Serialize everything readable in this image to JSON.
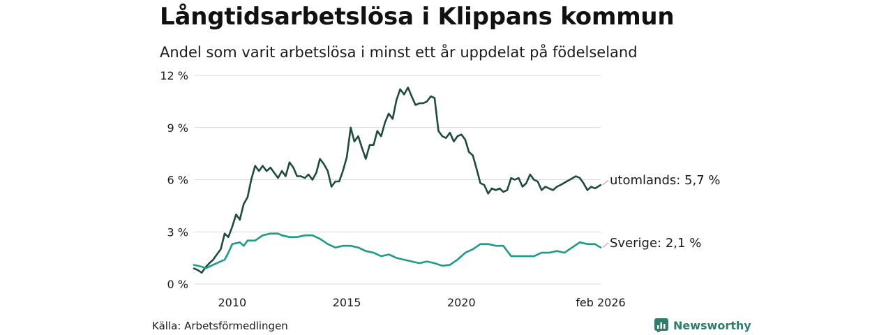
{
  "header": {
    "title": "Långtidsarbetslösa i Klippans kommun",
    "subtitle": "Andel som varit arbetslösa i minst ett år uppdelat på födelseland"
  },
  "footer": {
    "source": "Källa: Arbetsförmedlingen",
    "brand": "Newsworthy"
  },
  "colors": {
    "utomlands": "#1f4a40",
    "sverige": "#1e9a88",
    "grid": "#d9d9d9",
    "brand": "#2f7d6d"
  },
  "chart_data": {
    "type": "line",
    "title": "Långtidsarbetslösa i Klippans kommun",
    "subtitle": "Andel som varit arbetslösa i minst ett år uppdelat på födelseland",
    "xlabel": "",
    "ylabel": "",
    "xlim": [
      2008.33,
      2026.08
    ],
    "ylim": [
      0,
      12
    ],
    "y_ticks": [
      0,
      3,
      6,
      9,
      12
    ],
    "y_tick_labels": [
      "0 %",
      "3 %",
      "6 %",
      "9 %",
      "12 %"
    ],
    "x_ticks": [
      2010,
      2015,
      2020,
      2026.08
    ],
    "x_tick_labels": [
      "2010",
      "2015",
      "2020",
      "feb 2026"
    ],
    "grid": "horizontal",
    "series": [
      {
        "name": "utomlands",
        "end_label": "utomlands: 5,7 %",
        "points": [
          [
            2008.33,
            0.9
          ],
          [
            2008.5,
            0.8
          ],
          [
            2008.67,
            0.65
          ],
          [
            2008.83,
            0.95
          ],
          [
            2009.0,
            1.2
          ],
          [
            2009.17,
            1.4
          ],
          [
            2009.33,
            1.7
          ],
          [
            2009.5,
            2.0
          ],
          [
            2009.67,
            2.9
          ],
          [
            2009.83,
            2.7
          ],
          [
            2010.0,
            3.3
          ],
          [
            2010.17,
            4.0
          ],
          [
            2010.33,
            3.7
          ],
          [
            2010.5,
            4.6
          ],
          [
            2010.67,
            5.0
          ],
          [
            2010.83,
            6.0
          ],
          [
            2011.0,
            6.8
          ],
          [
            2011.17,
            6.5
          ],
          [
            2011.33,
            6.8
          ],
          [
            2011.5,
            6.5
          ],
          [
            2011.67,
            6.7
          ],
          [
            2011.83,
            6.4
          ],
          [
            2012.0,
            6.1
          ],
          [
            2012.17,
            6.5
          ],
          [
            2012.33,
            6.2
          ],
          [
            2012.5,
            7.0
          ],
          [
            2012.67,
            6.7
          ],
          [
            2012.83,
            6.2
          ],
          [
            2013.0,
            6.2
          ],
          [
            2013.17,
            6.1
          ],
          [
            2013.33,
            6.3
          ],
          [
            2013.5,
            6.0
          ],
          [
            2013.67,
            6.4
          ],
          [
            2013.83,
            7.2
          ],
          [
            2014.0,
            6.9
          ],
          [
            2014.17,
            6.5
          ],
          [
            2014.33,
            5.6
          ],
          [
            2014.5,
            5.9
          ],
          [
            2014.67,
            5.9
          ],
          [
            2014.83,
            6.5
          ],
          [
            2015.0,
            7.3
          ],
          [
            2015.17,
            9.0
          ],
          [
            2015.33,
            8.2
          ],
          [
            2015.5,
            8.5
          ],
          [
            2015.67,
            7.8
          ],
          [
            2015.83,
            7.2
          ],
          [
            2016.0,
            8.0
          ],
          [
            2016.17,
            8.0
          ],
          [
            2016.33,
            8.8
          ],
          [
            2016.5,
            8.5
          ],
          [
            2016.67,
            9.3
          ],
          [
            2016.83,
            9.8
          ],
          [
            2017.0,
            9.5
          ],
          [
            2017.17,
            10.6
          ],
          [
            2017.33,
            11.2
          ],
          [
            2017.5,
            10.9
          ],
          [
            2017.67,
            11.3
          ],
          [
            2017.83,
            10.8
          ],
          [
            2018.0,
            10.3
          ],
          [
            2018.17,
            10.4
          ],
          [
            2018.33,
            10.4
          ],
          [
            2018.5,
            10.5
          ],
          [
            2018.67,
            10.8
          ],
          [
            2018.83,
            10.7
          ],
          [
            2019.0,
            8.8
          ],
          [
            2019.17,
            8.5
          ],
          [
            2019.33,
            8.4
          ],
          [
            2019.5,
            8.7
          ],
          [
            2019.67,
            8.2
          ],
          [
            2019.83,
            8.5
          ],
          [
            2020.0,
            8.6
          ],
          [
            2020.17,
            8.3
          ],
          [
            2020.33,
            7.6
          ],
          [
            2020.5,
            7.4
          ],
          [
            2020.67,
            6.6
          ],
          [
            2020.83,
            5.8
          ],
          [
            2021.0,
            5.7
          ],
          [
            2021.17,
            5.2
          ],
          [
            2021.33,
            5.5
          ],
          [
            2021.5,
            5.4
          ],
          [
            2021.67,
            5.5
          ],
          [
            2021.83,
            5.3
          ],
          [
            2022.0,
            5.4
          ],
          [
            2022.17,
            6.1
          ],
          [
            2022.33,
            6.0
          ],
          [
            2022.5,
            6.1
          ],
          [
            2022.67,
            5.6
          ],
          [
            2022.83,
            5.8
          ],
          [
            2023.0,
            6.3
          ],
          [
            2023.17,
            6.0
          ],
          [
            2023.33,
            5.9
          ],
          [
            2023.5,
            5.4
          ],
          [
            2023.67,
            5.6
          ],
          [
            2023.83,
            5.5
          ],
          [
            2024.0,
            5.4
          ],
          [
            2024.17,
            5.6
          ],
          [
            2024.33,
            5.7
          ],
          [
            2025.0,
            6.2
          ],
          [
            2025.17,
            6.1
          ],
          [
            2025.33,
            5.8
          ],
          [
            2025.5,
            5.4
          ],
          [
            2025.67,
            5.6
          ],
          [
            2025.83,
            5.5
          ],
          [
            2026.08,
            5.7
          ]
        ]
      },
      {
        "name": "Sverige",
        "end_label": "Sverige: 2,1 %",
        "points": [
          [
            2008.33,
            1.1
          ],
          [
            2008.67,
            1.0
          ],
          [
            2008.83,
            0.9
          ],
          [
            2009.0,
            1.0
          ],
          [
            2009.33,
            1.2
          ],
          [
            2009.67,
            1.4
          ],
          [
            2009.83,
            1.8
          ],
          [
            2010.0,
            2.3
          ],
          [
            2010.33,
            2.4
          ],
          [
            2010.5,
            2.2
          ],
          [
            2010.67,
            2.5
          ],
          [
            2011.0,
            2.5
          ],
          [
            2011.33,
            2.8
          ],
          [
            2011.67,
            2.9
          ],
          [
            2012.0,
            2.9
          ],
          [
            2012.17,
            2.8
          ],
          [
            2012.5,
            2.7
          ],
          [
            2012.83,
            2.7
          ],
          [
            2013.17,
            2.8
          ],
          [
            2013.5,
            2.8
          ],
          [
            2013.83,
            2.6
          ],
          [
            2014.17,
            2.3
          ],
          [
            2014.5,
            2.1
          ],
          [
            2014.83,
            2.2
          ],
          [
            2015.17,
            2.2
          ],
          [
            2015.5,
            2.1
          ],
          [
            2015.83,
            1.9
          ],
          [
            2016.17,
            1.8
          ],
          [
            2016.5,
            1.6
          ],
          [
            2016.83,
            1.7
          ],
          [
            2017.17,
            1.5
          ],
          [
            2017.5,
            1.4
          ],
          [
            2017.83,
            1.3
          ],
          [
            2018.17,
            1.2
          ],
          [
            2018.5,
            1.3
          ],
          [
            2018.83,
            1.2
          ],
          [
            2019.17,
            1.05
          ],
          [
            2019.5,
            1.1
          ],
          [
            2019.83,
            1.4
          ],
          [
            2020.17,
            1.8
          ],
          [
            2020.5,
            2.0
          ],
          [
            2020.83,
            2.3
          ],
          [
            2021.17,
            2.3
          ],
          [
            2021.5,
            2.2
          ],
          [
            2021.83,
            2.2
          ],
          [
            2022.17,
            1.6
          ],
          [
            2022.5,
            1.6
          ],
          [
            2022.83,
            1.6
          ],
          [
            2023.17,
            1.6
          ],
          [
            2023.5,
            1.8
          ],
          [
            2023.83,
            1.8
          ],
          [
            2024.17,
            1.9
          ],
          [
            2024.5,
            1.8
          ],
          [
            2024.83,
            2.1
          ],
          [
            2025.17,
            2.4
          ],
          [
            2025.5,
            2.3
          ],
          [
            2025.83,
            2.3
          ],
          [
            2026.08,
            2.1
          ]
        ]
      }
    ]
  }
}
